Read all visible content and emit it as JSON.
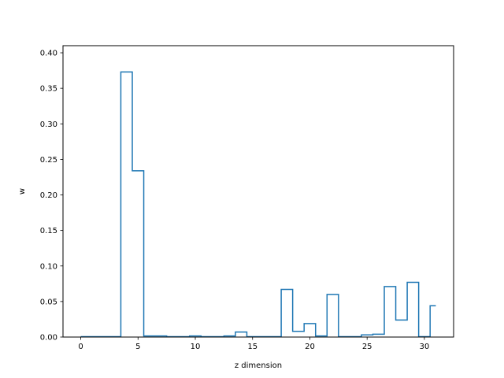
{
  "chart_data": {
    "type": "line",
    "drawstyle": "steps-mid",
    "title": "",
    "xlabel": "z dimension",
    "ylabel": "w",
    "xlim": [
      -1.55,
      32.55
    ],
    "ylim": [
      0,
      0.41
    ],
    "xticks": [
      0,
      5,
      10,
      15,
      20,
      25,
      30
    ],
    "yticks": [
      0.0,
      0.05,
      0.1,
      0.15,
      0.2,
      0.25,
      0.3,
      0.35,
      0.4
    ],
    "ytick_labels": [
      "0.00",
      "0.05",
      "0.10",
      "0.15",
      "0.20",
      "0.25",
      "0.30",
      "0.35",
      "0.40"
    ],
    "grid": false,
    "legend": "none",
    "line_color": "#1f77b4",
    "series": [
      {
        "x": [
          0,
          1,
          2,
          3,
          4,
          5,
          6,
          7,
          8,
          9,
          10,
          11,
          12,
          13,
          14,
          15,
          16,
          17,
          18,
          19,
          20,
          21,
          22,
          23,
          24,
          25,
          26,
          27,
          28,
          29,
          30,
          31
        ],
        "values": [
          0.0005,
          0.0005,
          0.0005,
          0.0005,
          0.373,
          0.234,
          0.0015,
          0.0015,
          0.0005,
          0.0005,
          0.0015,
          0.0005,
          0.0005,
          0.0015,
          0.007,
          0.0005,
          0.0005,
          0.0005,
          0.067,
          0.008,
          0.019,
          0.0015,
          0.06,
          0.0005,
          0.0005,
          0.003,
          0.004,
          0.071,
          0.024,
          0.077,
          0.0005,
          0.044
        ]
      }
    ]
  }
}
